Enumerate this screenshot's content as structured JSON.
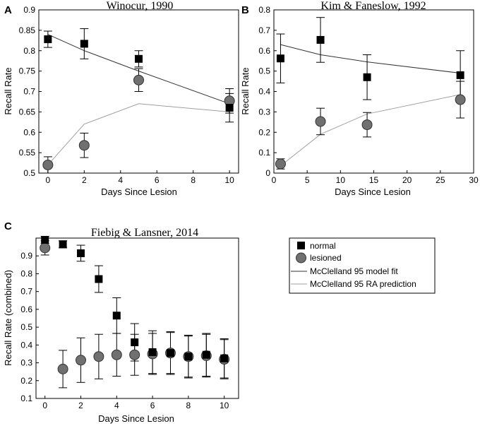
{
  "colors": {
    "normal": "#000000",
    "lesioned_fill": "#707070",
    "lesioned_stroke": "#333333",
    "model_fit": "#333333",
    "ra_prediction": "#a0a0a0"
  },
  "legend": {
    "normal": "normal",
    "lesioned": "lesioned",
    "model_fit": "McClelland 95 model fit",
    "ra_prediction": "McClelland 95 RA prediction"
  },
  "chart_data": [
    {
      "panel": "A",
      "type": "scatter",
      "title": "Winocur, 1990",
      "xlabel": "Days Since Lesion",
      "ylabel": "Recall Rate",
      "xlim": [
        -0.5,
        10.5
      ],
      "ylim": [
        0.5,
        0.9
      ],
      "xticks": [
        0,
        2,
        4,
        6,
        8,
        10
      ],
      "yticks": [
        0.5,
        0.55,
        0.6,
        0.65,
        0.7,
        0.75,
        0.8,
        0.85,
        0.9
      ],
      "yticklabels": [
        "0.5",
        "0.55",
        "0.6",
        "0.65",
        "0.7",
        "0.75",
        "0.8",
        "0.85",
        "0.9"
      ],
      "series": [
        {
          "name": "normal",
          "kind": "square",
          "x": [
            0,
            2,
            5,
            10
          ],
          "y": [
            0.828,
            0.817,
            0.78,
            0.66
          ],
          "err": [
            0.02,
            0.037,
            0.02,
            0.035
          ]
        },
        {
          "name": "lesioned",
          "kind": "circle",
          "x": [
            0,
            2,
            5,
            10
          ],
          "y": [
            0.52,
            0.568,
            0.728,
            0.677
          ],
          "err": [
            0.02,
            0.03,
            0.028,
            0.03
          ]
        },
        {
          "name": "McClelland 95 model fit",
          "kind": "line",
          "x": [
            0,
            2,
            5,
            10
          ],
          "y": [
            0.84,
            0.8,
            0.75,
            0.67
          ]
        },
        {
          "name": "McClelland 95 RA prediction",
          "kind": "line-light",
          "x": [
            0,
            2,
            5,
            10
          ],
          "y": [
            0.52,
            0.62,
            0.67,
            0.65
          ]
        }
      ]
    },
    {
      "panel": "B",
      "type": "scatter",
      "title": "Kim & Faneslow, 1992",
      "xlabel": "Days Since Lesion",
      "ylabel": "Recall Rate",
      "xlim": [
        0,
        30
      ],
      "ylim": [
        0,
        0.8
      ],
      "xticks": [
        0,
        5,
        10,
        15,
        20,
        25,
        30
      ],
      "yticks": [
        0,
        0.1,
        0.2,
        0.3,
        0.4,
        0.5,
        0.6,
        0.7,
        0.8
      ],
      "yticklabels": [
        "0",
        "0.1",
        "0.2",
        "0.3",
        "0.4",
        "0.5",
        "0.6",
        "0.7",
        "0.8"
      ],
      "series": [
        {
          "name": "normal",
          "kind": "square",
          "x": [
            1,
            7,
            14,
            28
          ],
          "y": [
            0.562,
            0.653,
            0.47,
            0.48
          ],
          "err": [
            0.12,
            0.11,
            0.11,
            0.12
          ]
        },
        {
          "name": "lesioned",
          "kind": "circle",
          "x": [
            1,
            7,
            14,
            28
          ],
          "y": [
            0.045,
            0.253,
            0.237,
            0.36
          ],
          "err": [
            0.025,
            0.065,
            0.06,
            0.09
          ]
        },
        {
          "name": "McClelland 95 model fit",
          "kind": "line",
          "x": [
            1,
            7,
            14,
            28
          ],
          "y": [
            0.63,
            0.58,
            0.545,
            0.49
          ]
        },
        {
          "name": "McClelland 95 RA prediction",
          "kind": "line-light",
          "x": [
            1,
            7,
            14,
            28
          ],
          "y": [
            0.035,
            0.19,
            0.29,
            0.385
          ]
        }
      ]
    },
    {
      "panel": "C",
      "type": "scatter",
      "title": "Fiebig & Lansner, 2014",
      "xlabel": "Days Since Lesion",
      "ylabel": "Recall Rate (combined)",
      "xlim": [
        -0.5,
        10.8
      ],
      "ylim": [
        0.1,
        1.0
      ],
      "xticks": [
        0,
        2,
        4,
        6,
        8,
        10
      ],
      "yticks": [
        0.1,
        0.2,
        0.3,
        0.4,
        0.5,
        0.6,
        0.7,
        0.8,
        0.9
      ],
      "yticklabels": [
        "0.1",
        "0.2",
        "0.3",
        "0.4",
        "0.5",
        "0.6",
        "0.7",
        "0.8",
        "0.9"
      ],
      "series": [
        {
          "name": "normal",
          "kind": "square",
          "x": [
            0,
            1,
            2,
            3,
            4,
            5,
            6,
            7,
            8,
            9,
            10
          ],
          "y": [
            0.99,
            0.965,
            0.915,
            0.77,
            0.565,
            0.415,
            0.36,
            0.355,
            0.335,
            0.345,
            0.325
          ],
          "err": [
            0.02,
            0.02,
            0.045,
            0.075,
            0.1,
            0.105,
            0.12,
            0.12,
            0.12,
            0.12,
            0.11
          ]
        },
        {
          "name": "lesioned",
          "kind": "circle",
          "x": [
            0,
            1,
            2,
            3,
            4,
            5,
            6,
            7,
            8,
            9,
            10
          ],
          "y": [
            0.945,
            0.265,
            0.315,
            0.335,
            0.345,
            0.345,
            0.35,
            0.355,
            0.335,
            0.34,
            0.32
          ],
          "err": [
            0.04,
            0.105,
            0.125,
            0.125,
            0.12,
            0.115,
            0.115,
            0.115,
            0.115,
            0.12,
            0.11
          ]
        }
      ]
    }
  ],
  "panel_labels": [
    "A",
    "B",
    "C"
  ]
}
